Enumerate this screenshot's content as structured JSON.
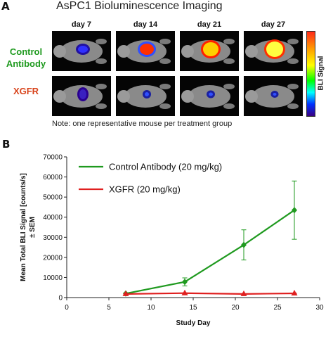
{
  "panel_a": {
    "letter": "A",
    "title": "AsPC1 Bioluminescence Imaging",
    "days": [
      "day 7",
      "day 14",
      "day 21",
      "day 27"
    ],
    "rows": [
      "Control Antibody",
      "XGFR"
    ],
    "colorbar_label": "BLI Signal",
    "note": "Note: one representative mouse per treatment group",
    "colors": {
      "control": "#1f9a1f",
      "xgfr": "#d8441c"
    }
  },
  "panel_b": {
    "letter": "B"
  },
  "chart_data": {
    "type": "line",
    "xlabel": "Study Day",
    "ylabel": "Mean Total BLI Signal [counts/s] ± SEM",
    "xlim": [
      0,
      30
    ],
    "ylim": [
      0,
      70000
    ],
    "xticks": [
      0,
      5,
      10,
      15,
      20,
      25,
      30
    ],
    "yticks": [
      0,
      10000,
      20000,
      30000,
      40000,
      50000,
      60000,
      70000
    ],
    "grid": false,
    "legend_position": "top-left",
    "series": [
      {
        "name": "Control Antibody (20 mg/kg)",
        "color": "#1f9a1f",
        "marker": "diamond",
        "x": [
          7,
          14,
          21,
          27
        ],
        "y": [
          2000,
          7800,
          26200,
          43500
        ],
        "err": [
          300,
          2000,
          7500,
          14500
        ]
      },
      {
        "name": "XGFR (20 mg/kg)",
        "color": "#e02020",
        "marker": "triangle",
        "x": [
          7,
          14,
          21,
          27
        ],
        "y": [
          1800,
          2200,
          1800,
          2100
        ],
        "err": [
          100,
          150,
          100,
          100
        ]
      }
    ]
  }
}
